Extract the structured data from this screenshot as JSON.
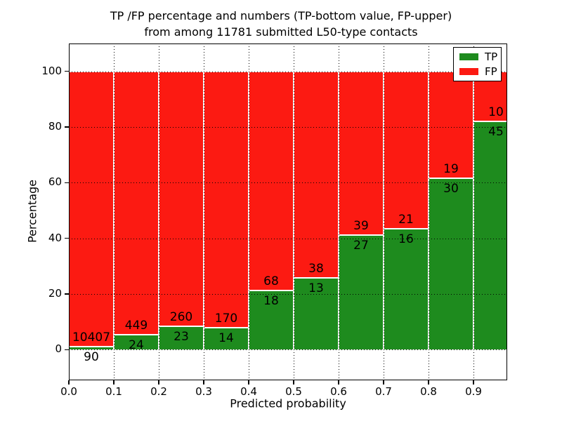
{
  "figure": {
    "title_line1": "TP /FP percentage and numbers (TP-bottom value, FP-upper)",
    "title_line2": "from among 11781 submitted L50-type contacts"
  },
  "chart_data": {
    "type": "bar",
    "stacked": true,
    "normalized_to_percent": true,
    "title": "TP /FP percentage and numbers (TP-bottom value, FP-upper) from among 11781 submitted L50-type contacts",
    "total_contacts": 11781,
    "xlabel": "Predicted probability",
    "ylabel": "Percentage",
    "x_tick_labels": [
      "0.0",
      "0.1",
      "0.2",
      "0.3",
      "0.4",
      "0.5",
      "0.6",
      "0.7",
      "0.8",
      "0.9"
    ],
    "y_tick_values": [
      0,
      20,
      40,
      60,
      80,
      100
    ],
    "xlim": [
      0.0,
      0.975
    ],
    "ylim": [
      -11,
      110
    ],
    "bin_width": 0.1,
    "grid": "dotted",
    "legend_position": "upper right",
    "series": [
      {
        "name": "TP",
        "color": "#1E8B1E",
        "position": "bottom"
      },
      {
        "name": "FP",
        "color": "#FC1A12",
        "position": "top"
      }
    ],
    "bins": [
      {
        "x_start": 0.0,
        "tp": 90,
        "fp": 10407
      },
      {
        "x_start": 0.1,
        "tp": 24,
        "fp": 449
      },
      {
        "x_start": 0.2,
        "tp": 23,
        "fp": 260
      },
      {
        "x_start": 0.3,
        "tp": 14,
        "fp": 170
      },
      {
        "x_start": 0.4,
        "tp": 18,
        "fp": 68
      },
      {
        "x_start": 0.5,
        "tp": 13,
        "fp": 38
      },
      {
        "x_start": 0.6,
        "tp": 27,
        "fp": 39
      },
      {
        "x_start": 0.7,
        "tp": 16,
        "fp": 21
      },
      {
        "x_start": 0.8,
        "tp": 30,
        "fp": 19
      },
      {
        "x_start": 0.9,
        "tp": 45,
        "fp": 10
      }
    ]
  }
}
